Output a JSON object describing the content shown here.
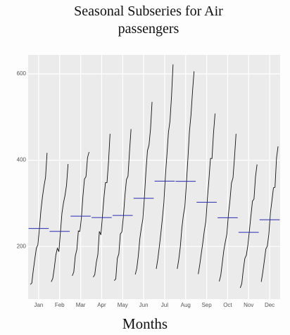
{
  "chart_data": {
    "type": "seasonal-subseries",
    "title": "Seasonal Subseries for Air passengers",
    "x_label": "Months",
    "categories": [
      "Jan",
      "Feb",
      "Mar",
      "Apr",
      "May",
      "Jun",
      "Jul",
      "Aug",
      "Sep",
      "Oct",
      "Nov",
      "Dec"
    ],
    "line_color": "#111111",
    "mean_color": "#2b2bb0",
    "ylim": [
      78,
      644
    ],
    "yticks": [
      200,
      400,
      600
    ],
    "grid": true,
    "series": [
      {
        "values": [
          112,
          115,
          145,
          171,
          196,
          204,
          242,
          284,
          315,
          340,
          360,
          417
        ],
        "mean": 241.75
      },
      {
        "values": [
          118,
          126,
          150,
          180,
          196,
          188,
          233,
          277,
          301,
          318,
          342,
          391
        ],
        "mean": 235
      },
      {
        "values": [
          132,
          141,
          178,
          193,
          236,
          235,
          267,
          317,
          356,
          362,
          406,
          419
        ],
        "mean": 270.17
      },
      {
        "values": [
          129,
          135,
          163,
          181,
          235,
          227,
          269,
          313,
          348,
          348,
          396,
          461
        ],
        "mean": 267.08
      },
      {
        "values": [
          121,
          125,
          172,
          183,
          229,
          234,
          270,
          318,
          355,
          363,
          420,
          472
        ],
        "mean": 271.83
      },
      {
        "values": [
          135,
          149,
          178,
          218,
          243,
          264,
          315,
          374,
          422,
          435,
          472,
          535
        ],
        "mean": 311.67
      },
      {
        "values": [
          148,
          170,
          199,
          230,
          264,
          302,
          364,
          413,
          465,
          491,
          548,
          622
        ],
        "mean": 351.33
      },
      {
        "values": [
          148,
          170,
          199,
          242,
          272,
          293,
          347,
          405,
          467,
          505,
          559,
          606
        ],
        "mean": 351.08
      },
      {
        "values": [
          136,
          158,
          184,
          209,
          237,
          259,
          312,
          355,
          404,
          404,
          463,
          508
        ],
        "mean": 302.42
      },
      {
        "values": [
          119,
          133,
          162,
          191,
          211,
          229,
          274,
          306,
          347,
          359,
          407,
          461
        ],
        "mean": 266.58
      },
      {
        "values": [
          104,
          114,
          146,
          172,
          180,
          203,
          237,
          271,
          305,
          310,
          362,
          390
        ],
        "mean": 232.83
      },
      {
        "values": [
          118,
          140,
          166,
          194,
          201,
          229,
          278,
          306,
          336,
          337,
          405,
          432
        ],
        "mean": 261.83
      }
    ]
  }
}
